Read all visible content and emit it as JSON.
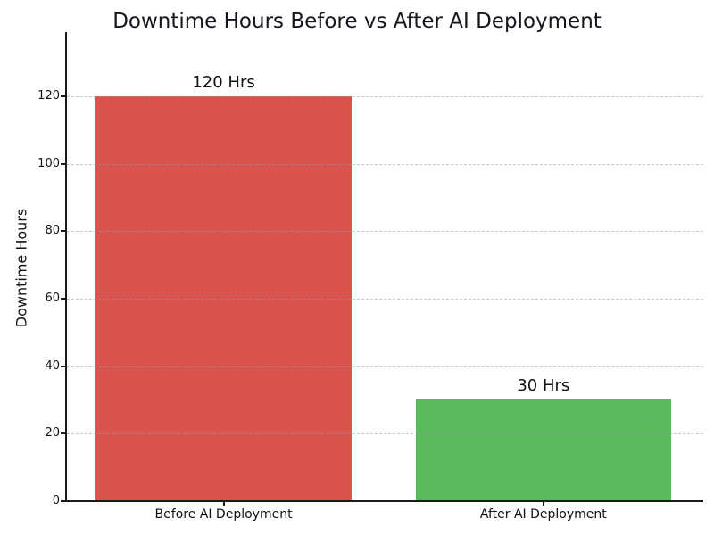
{
  "figure": {
    "background_color": "#ffffff",
    "title_color": "#15151d",
    "axis_color": "#1a1a1a",
    "text_color": "#111111"
  },
  "chart_data": {
    "type": "bar",
    "title": "Downtime Hours Before vs After AI Deployment",
    "xlabel": "",
    "ylabel": "Downtime Hours",
    "categories": [
      "Before AI Deployment",
      "After AI Deployment"
    ],
    "values": [
      120,
      30
    ],
    "bar_labels": [
      "120 Hrs",
      "30 Hrs"
    ],
    "bar_colors": [
      "#d9534f",
      "#5cb85c"
    ],
    "yticks": [
      0,
      20,
      40,
      60,
      80,
      100,
      120
    ],
    "ylim": [
      0,
      139
    ],
    "xlim": [
      -0.49,
      1.5
    ],
    "bar_width_units": 0.8,
    "grid": "horizontal dashed",
    "grid_color": "#9b9b9b",
    "legend": "none",
    "spines": [
      "left",
      "bottom"
    ]
  }
}
